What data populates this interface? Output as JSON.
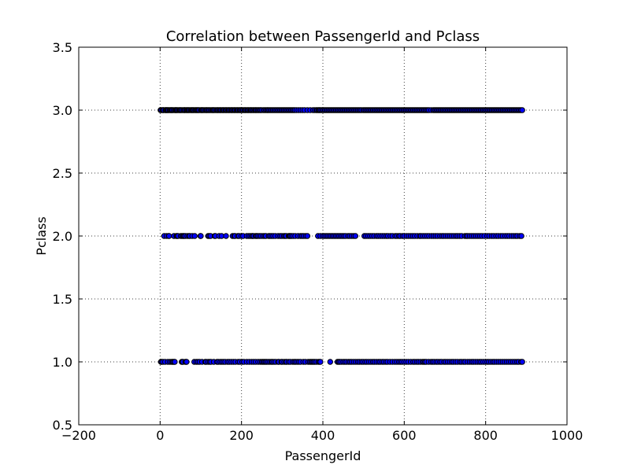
{
  "chart_data": {
    "type": "scatter",
    "title": "Correlation between PassengerId and Pclass",
    "xlabel": "PassengerId",
    "ylabel": "Pclass",
    "xlim": [
      -200,
      1000
    ],
    "ylim": [
      0.5,
      3.5
    ],
    "xticks": [
      -200,
      0,
      200,
      400,
      600,
      800,
      1000
    ],
    "xtick_labels": [
      "−200",
      "0",
      "200",
      "400",
      "600",
      "800",
      "1000"
    ],
    "yticks": [
      0.5,
      1.0,
      1.5,
      2.0,
      2.5,
      3.0,
      3.5
    ],
    "ytick_labels": [
      "0.5",
      "1.0",
      "1.5",
      "2.0",
      "2.5",
      "3.0",
      "3.5"
    ],
    "grid": true,
    "marker_fill": "#0000ff",
    "marker_edge": "#000000",
    "series": [
      {
        "y": 3.0,
        "x": [
          1,
          3,
          6,
          8,
          9,
          13,
          14,
          15,
          17,
          19,
          20,
          23,
          25,
          27,
          29,
          30,
          33,
          36,
          38,
          39,
          41,
          43,
          46,
          48,
          50,
          52,
          55,
          58,
          60,
          61,
          64,
          66,
          68,
          70,
          72,
          75,
          77,
          79,
          81,
          83,
          86,
          88,
          90,
          92,
          94,
          96,
          100,
          102,
          104,
          106,
          109,
          112,
          114,
          116,
          119,
          121,
          124,
          127,
          129,
          131,
          133,
          136,
          139,
          141,
          143,
          146,
          148,
          150,
          153,
          155,
          157,
          160,
          162,
          164,
          167,
          169,
          171,
          174,
          176,
          178,
          181,
          183,
          185,
          188,
          190,
          192,
          195,
          197,
          199,
          202,
          204,
          207,
          209,
          211,
          214,
          216,
          218,
          221,
          223,
          225,
          228,
          230,
          233,
          235,
          237,
          240,
          242,
          245,
          247,
          250,
          254,
          257,
          260,
          263,
          265,
          268,
          271,
          274,
          277,
          280,
          283,
          286,
          289,
          292,
          295,
          298,
          301,
          304,
          307,
          310,
          313,
          316,
          319,
          322,
          325,
          328,
          331,
          335,
          340,
          345,
          350,
          355,
          362,
          369,
          376,
          380,
          384,
          386,
          389,
          391,
          393,
          396,
          399,
          402,
          405,
          408,
          411,
          414,
          417,
          420,
          423,
          426,
          429,
          432,
          435,
          438,
          441,
          444,
          447,
          450,
          453,
          456,
          459,
          462,
          465,
          468,
          471,
          474,
          477,
          480,
          483,
          486,
          489,
          492,
          495,
          499,
          502,
          505,
          508,
          511,
          514,
          517,
          520,
          523,
          526,
          529,
          532,
          535,
          538,
          541,
          544,
          547,
          550,
          553,
          556,
          559,
          562,
          565,
          568,
          571,
          574,
          577,
          580,
          583,
          586,
          589,
          592,
          595,
          598,
          601,
          604,
          607,
          610,
          613,
          616,
          619,
          622,
          625,
          628,
          631,
          634,
          637,
          640,
          643,
          646,
          649,
          652,
          655,
          658,
          661,
          666,
          671,
          674,
          677,
          680,
          683,
          686,
          689,
          692,
          695,
          698,
          701,
          704,
          707,
          710,
          713,
          716,
          719,
          722,
          725,
          728,
          731,
          734,
          737,
          740,
          743,
          746,
          749,
          752,
          755,
          758,
          761,
          764,
          767,
          770,
          773,
          776,
          779,
          782,
          785,
          788,
          791,
          794,
          797,
          800,
          803,
          806,
          809,
          812,
          815,
          818,
          821,
          824,
          827,
          830,
          833,
          836,
          839,
          842,
          845,
          848,
          851,
          854,
          857,
          860,
          863,
          866,
          869,
          872,
          875,
          878,
          881,
          884,
          887,
          890
        ]
      },
      {
        "y": 2.0,
        "x": [
          10,
          16,
          21,
          22,
          34,
          40,
          42,
          44,
          51,
          54,
          57,
          59,
          62,
          67,
          71,
          73,
          79,
          85,
          99,
          100,
          118,
          121,
          124,
          134,
          136,
          145,
          151,
          162,
          178,
          182,
          184,
          191,
          194,
          200,
          204,
          213,
          218,
          222,
          226,
          227,
          230,
          235,
          237,
          240,
          244,
          248,
          253,
          257,
          260,
          267,
          270,
          274,
          278,
          283,
          290,
          295,
          299,
          304,
          307,
          310,
          316,
          318,
          320,
          323,
          327,
          332,
          339,
          345,
          349,
          353,
          358,
          362,
          388,
          394,
          400,
          404,
          408,
          412,
          416,
          420,
          424,
          428,
          432,
          436,
          440,
          444,
          448,
          452,
          456,
          462,
          466,
          471,
          476,
          480,
          502,
          506,
          511,
          516,
          521,
          526,
          532,
          536,
          541,
          546,
          551,
          556,
          560,
          566,
          571,
          578,
          582,
          587,
          590,
          596,
          600,
          606,
          611,
          616,
          621,
          626,
          632,
          638,
          641,
          646,
          651,
          656,
          661,
          667,
          672,
          677,
          682,
          688,
          693,
          697,
          702,
          707,
          712,
          717,
          722,
          727,
          731,
          736,
          741,
          749,
          753,
          756,
          761,
          766,
          771,
          776,
          781,
          786,
          791,
          797,
          804,
          809,
          815,
          820,
          826,
          831,
          837,
          842,
          848,
          853,
          858,
          864,
          869,
          874,
          878,
          884,
          888
        ]
      },
      {
        "y": 1.0,
        "x": [
          2,
          4,
          7,
          12,
          19,
          24,
          28,
          31,
          32,
          35,
          36,
          53,
          55,
          56,
          62,
          64,
          65,
          84,
          89,
          93,
          97,
          103,
          111,
          113,
          118,
          122,
          125,
          132,
          140,
          143,
          148,
          152,
          156,
          160,
          166,
          170,
          175,
          180,
          185,
          192,
          196,
          202,
          206,
          213,
          219,
          225,
          230,
          235,
          241,
          246,
          250,
          253,
          256,
          259,
          262,
          266,
          270,
          274,
          276,
          280,
          284,
          290,
          292,
          298,
          300,
          305,
          309,
          311,
          316,
          320,
          326,
          330,
          333,
          337,
          341,
          345,
          352,
          357,
          364,
          368,
          371,
          374,
          377,
          380,
          384,
          389,
          392,
          394,
          418,
          436,
          439,
          441,
          445,
          450,
          454,
          458,
          463,
          467,
          471,
          476,
          481,
          486,
          490,
          495,
          499,
          504,
          508,
          513,
          518,
          523,
          527,
          532,
          537,
          541,
          546,
          550,
          555,
          559,
          565,
          571,
          577,
          582,
          587,
          591,
          595,
          600,
          605,
          610,
          616,
          622,
          626,
          631,
          635,
          640,
          645,
          648,
          651,
          654,
          660,
          666,
          670,
          674,
          679,
          683,
          688,
          692,
          698,
          702,
          707,
          712,
          717,
          721,
          726,
          731,
          737,
          741,
          746,
          750,
          756,
          761,
          766,
          770,
          775,
          780,
          785,
          789,
          794,
          799,
          804,
          808,
          813,
          818,
          822,
          827,
          832,
          837,
          842,
          847,
          852,
          857,
          862,
          867,
          872,
          877,
          881,
          887,
          890
        ]
      }
    ]
  }
}
